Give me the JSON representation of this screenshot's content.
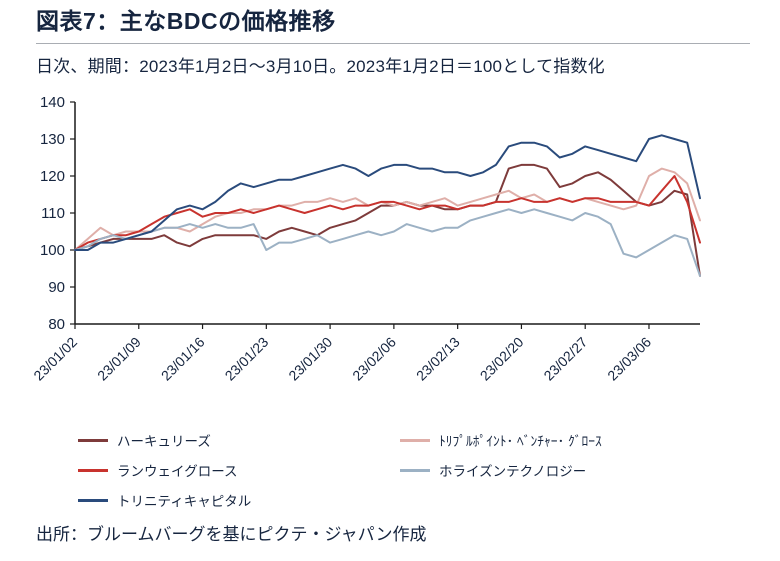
{
  "header": {
    "title": "図表7：主なBDCの価格推移",
    "subtitle": "日次、期間：2023年1月2日～3月10日。2023年1月2日＝100として指数化"
  },
  "footer": {
    "source": "出所：ブルームバーグを基にピクテ・ジャパン作成"
  },
  "chart_data": {
    "type": "line",
    "title": "図表7：主なBDCの価格推移",
    "xlabel": "",
    "ylabel": "",
    "ylim": [
      80,
      140
    ],
    "y_ticks": [
      80,
      90,
      100,
      110,
      120,
      130,
      140
    ],
    "grid": false,
    "legend_position": "bottom",
    "text_color": "#16253f",
    "axis_color": "#1a1a1a",
    "x": [
      "23/01/02",
      "23/01/03",
      "23/01/04",
      "23/01/05",
      "23/01/06",
      "23/01/09",
      "23/01/10",
      "23/01/11",
      "23/01/12",
      "23/01/13",
      "23/01/16",
      "23/01/17",
      "23/01/18",
      "23/01/19",
      "23/01/20",
      "23/01/23",
      "23/01/24",
      "23/01/25",
      "23/01/26",
      "23/01/27",
      "23/01/30",
      "23/01/31",
      "23/02/01",
      "23/02/02",
      "23/02/03",
      "23/02/06",
      "23/02/07",
      "23/02/08",
      "23/02/09",
      "23/02/10",
      "23/02/13",
      "23/02/14",
      "23/02/15",
      "23/02/16",
      "23/02/17",
      "23/02/20",
      "23/02/21",
      "23/02/22",
      "23/02/23",
      "23/02/24",
      "23/02/27",
      "23/02/28",
      "23/03/01",
      "23/03/02",
      "23/03/03",
      "23/03/06",
      "23/03/07",
      "23/03/08",
      "23/03/09",
      "23/03/10"
    ],
    "x_tick_indices": [
      0,
      5,
      10,
      15,
      20,
      25,
      30,
      35,
      40,
      45
    ],
    "x_tick_labels": [
      "23/01/02",
      "23/01/09",
      "23/01/16",
      "23/01/23",
      "23/01/30",
      "23/02/06",
      "23/02/13",
      "23/02/20",
      "23/02/27",
      "23/03/06"
    ],
    "series": [
      {
        "id": "hercules",
        "name": "ハーキュリーズ",
        "color": "#7e3b3b",
        "values": [
          100,
          101,
          102,
          103,
          103,
          103,
          103,
          104,
          102,
          101,
          103,
          104,
          104,
          104,
          104,
          103,
          105,
          106,
          105,
          104,
          106,
          107,
          108,
          110,
          112,
          112,
          113,
          112,
          112,
          111,
          111,
          112,
          112,
          113,
          122,
          123,
          123,
          122,
          117,
          118,
          120,
          121,
          119,
          116,
          113,
          112,
          113,
          116,
          115,
          93
        ]
      },
      {
        "id": "triplepoint",
        "name": "ﾄﾘﾌﾟﾙﾎﾟｲﾝﾄ･ ﾍﾞﾝﾁｬｰ･ ｸﾞﾛｰｽ",
        "color": "#dfafa9",
        "values": [
          100,
          103,
          106,
          104,
          105,
          105,
          105,
          106,
          106,
          105,
          107,
          109,
          110,
          110,
          111,
          111,
          112,
          112,
          113,
          113,
          114,
          113,
          114,
          112,
          113,
          112,
          113,
          112,
          113,
          114,
          112,
          113,
          114,
          115,
          116,
          114,
          115,
          113,
          114,
          113,
          114,
          113,
          112,
          111,
          112,
          120,
          122,
          121,
          118,
          108
        ]
      },
      {
        "id": "runway",
        "name": "ランウェイグロース",
        "color": "#c8332e",
        "values": [
          100,
          102,
          103,
          104,
          104,
          105,
          107,
          109,
          110,
          111,
          109,
          110,
          110,
          111,
          110,
          111,
          112,
          111,
          110,
          111,
          112,
          111,
          112,
          112,
          113,
          113,
          112,
          111,
          112,
          112,
          111,
          112,
          112,
          113,
          113,
          114,
          113,
          113,
          114,
          113,
          114,
          114,
          113,
          113,
          113,
          112,
          116,
          120,
          113,
          102
        ]
      },
      {
        "id": "horizon",
        "name": "ホライズンテクノロジー",
        "color": "#9cb1c4",
        "values": [
          100,
          101,
          103,
          104,
          103,
          104,
          105,
          106,
          106,
          107,
          106,
          107,
          106,
          106,
          107,
          100,
          102,
          102,
          103,
          104,
          102,
          103,
          104,
          105,
          104,
          105,
          107,
          106,
          105,
          106,
          106,
          108,
          109,
          110,
          111,
          110,
          111,
          110,
          109,
          108,
          110,
          109,
          107,
          99,
          98,
          100,
          102,
          104,
          103,
          93
        ]
      },
      {
        "id": "trinity",
        "name": "トリニティキャピタル",
        "color": "#2a4b7c",
        "values": [
          100,
          100,
          102,
          102,
          103,
          104,
          105,
          108,
          111,
          112,
          111,
          113,
          116,
          118,
          117,
          118,
          119,
          119,
          120,
          121,
          122,
          123,
          122,
          120,
          122,
          123,
          123,
          122,
          122,
          121,
          121,
          120,
          121,
          123,
          128,
          129,
          129,
          128,
          125,
          126,
          128,
          127,
          126,
          125,
          124,
          130,
          131,
          130,
          129,
          114
        ]
      }
    ]
  }
}
